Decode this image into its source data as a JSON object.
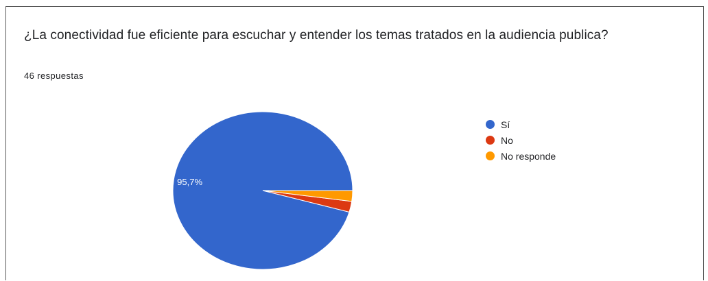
{
  "question": {
    "title": "¿La conectividad fue eficiente para escuchar y entender los temas tratados en la audiencia publica?",
    "responses": "46 respuestas"
  },
  "chart_data": {
    "type": "pie",
    "title": "¿La conectividad fue eficiente para escuchar y entender los temas tratados en la audiencia publica?",
    "subtitle": "46 respuestas",
    "legend_position": "right",
    "categories": [
      "Sí",
      "No",
      "No responde"
    ],
    "values": [
      95.7,
      2.2,
      2.2
    ],
    "counts": [
      44,
      1,
      1
    ],
    "colors": [
      "#3366cc",
      "#dc3912",
      "#ff9900"
    ],
    "data_labels": [
      "95,7%",
      "",
      ""
    ]
  }
}
